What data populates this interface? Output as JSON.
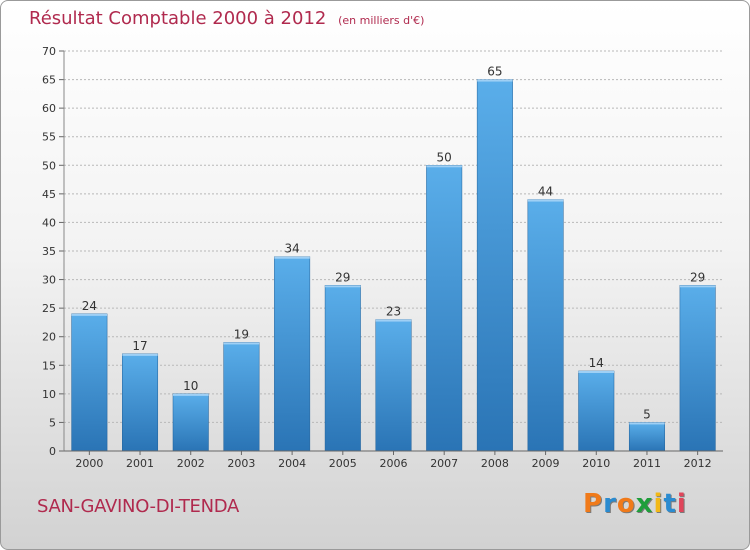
{
  "chart_data": {
    "type": "bar",
    "title": "Résultat Comptable 2000 à 2012",
    "subtitle": "(en milliers d'€)",
    "categories": [
      "2000",
      "2001",
      "2002",
      "2003",
      "2004",
      "2005",
      "2006",
      "2007",
      "2008",
      "2009",
      "2010",
      "2011",
      "2012"
    ],
    "values": [
      24,
      17,
      10,
      19,
      34,
      29,
      23,
      50,
      65,
      44,
      14,
      5,
      29
    ],
    "ylim": [
      0,
      70
    ],
    "yticks": [
      0,
      5,
      10,
      15,
      20,
      25,
      30,
      35,
      40,
      45,
      50,
      55,
      60,
      65,
      70
    ],
    "grid": true,
    "xlabel": "",
    "ylabel": ""
  },
  "place_name": "SAN-GAVINO-DI-TENDA",
  "brand": {
    "letters": [
      "P",
      "r",
      "o",
      "x",
      "i",
      "t",
      "i"
    ],
    "colors": [
      "#f07a1a",
      "#2a8bd0",
      "#f07a1a",
      "#1f9e3b",
      "#f2b818",
      "#2a8bd0",
      "#e0455a"
    ]
  },
  "colors": {
    "title": "#b02a4e",
    "bar_light": "#5aaeea",
    "bar_dark": "#2a74b5",
    "grid": "#b8b8b8"
  }
}
